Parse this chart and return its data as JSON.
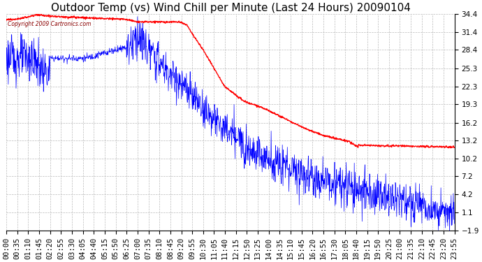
{
  "title": "Outdoor Temp (vs) Wind Chill per Minute (Last 24 Hours) 20090104",
  "copyright_text": "Copyright 2009 Cartronics.com",
  "yticks": [
    34.4,
    31.4,
    28.4,
    25.3,
    22.3,
    19.3,
    16.2,
    13.2,
    10.2,
    7.2,
    4.2,
    1.1,
    -1.9
  ],
  "ymin": -1.9,
  "ymax": 34.4,
  "xtick_labels": [
    "00:00",
    "00:35",
    "01:10",
    "01:45",
    "02:20",
    "02:55",
    "03:30",
    "04:05",
    "04:40",
    "05:15",
    "05:50",
    "06:25",
    "07:00",
    "07:35",
    "08:10",
    "08:45",
    "09:20",
    "09:55",
    "10:30",
    "11:05",
    "11:40",
    "12:15",
    "12:50",
    "13:25",
    "14:00",
    "14:35",
    "15:10",
    "15:45",
    "16:20",
    "16:55",
    "17:30",
    "18:05",
    "18:40",
    "19:15",
    "19:50",
    "20:25",
    "21:00",
    "21:35",
    "22:10",
    "22:45",
    "23:20",
    "23:55"
  ],
  "background_color": "#ffffff",
  "plot_bg_color": "#ffffff",
  "grid_color": "#bbbbbb",
  "blue_color": "#0000ff",
  "red_color": "#ff0000",
  "title_fontsize": 11,
  "tick_fontsize": 7.5
}
